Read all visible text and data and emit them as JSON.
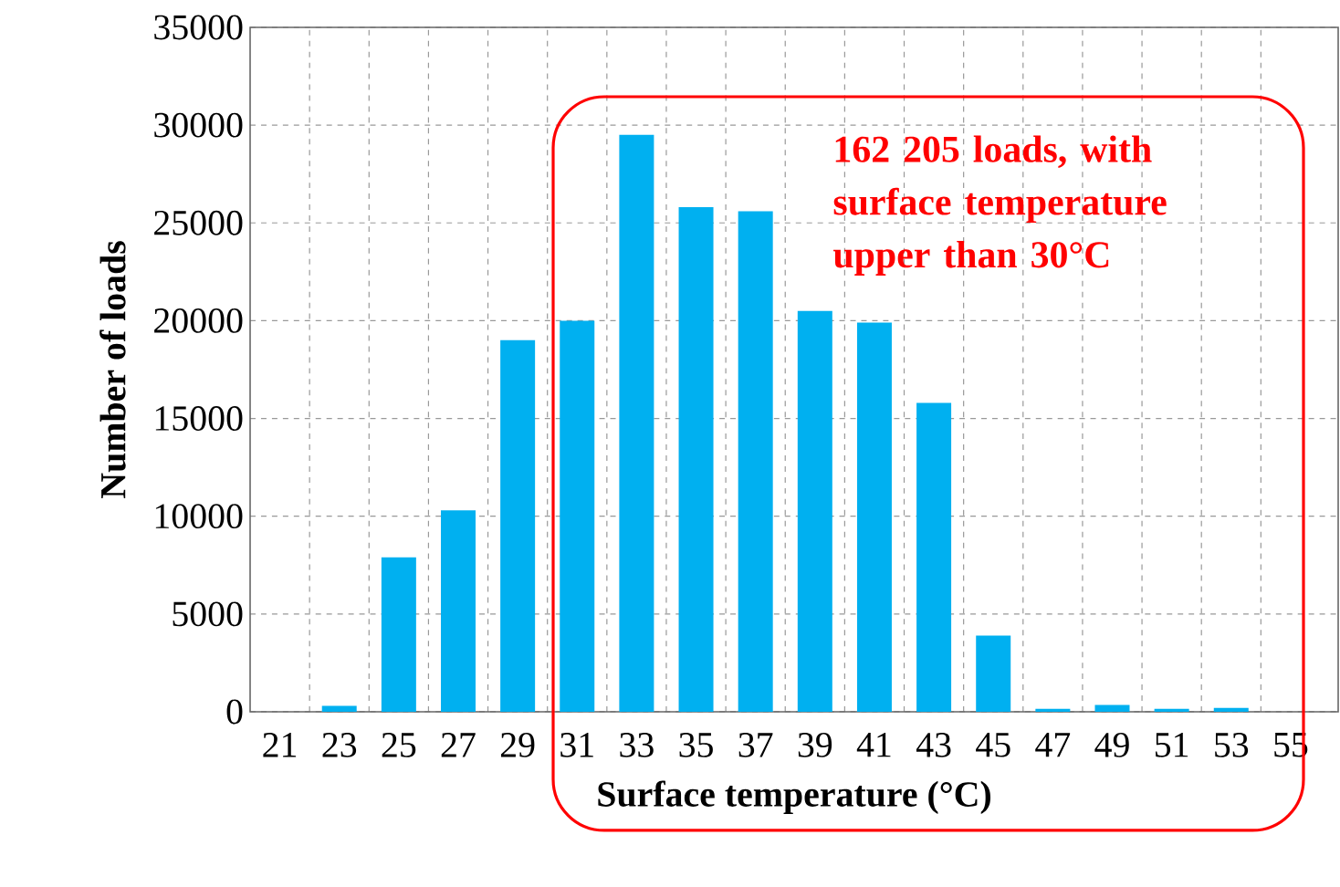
{
  "chart_data": {
    "type": "bar",
    "xlabel": "Surface temperature (°C)",
    "ylabel": "Number of loads",
    "categories": [
      "21",
      "23",
      "25",
      "27",
      "29",
      "31",
      "33",
      "35",
      "37",
      "39",
      "41",
      "43",
      "45",
      "47",
      "49",
      "51",
      "53",
      "55"
    ],
    "values": [
      null,
      300,
      7900,
      10300,
      19000,
      20000,
      29500,
      25800,
      25600,
      20500,
      19900,
      15800,
      3900,
      150,
      350,
      150,
      200,
      null
    ],
    "color": "#00b0f0",
    "ylim": [
      0,
      35000
    ],
    "yticks": [
      0,
      5000,
      10000,
      15000,
      20000,
      25000,
      30000,
      35000
    ],
    "grid": true,
    "annotations": [
      "162 205 loads, with surface temperature upper than 30°C"
    ]
  }
}
